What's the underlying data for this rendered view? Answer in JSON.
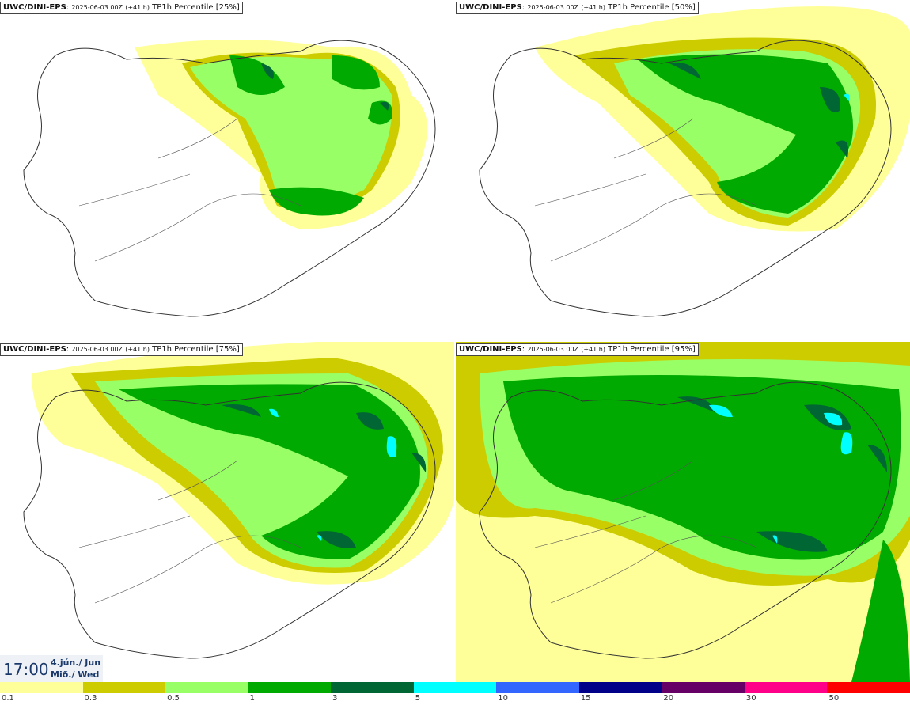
{
  "panels": [
    {
      "model": "UWC/DINI-EPS",
      "run": "2025-06-03 00Z",
      "lead": "(+41 h)",
      "title": "TP1h Percentile [25%]",
      "percentile": 25
    },
    {
      "model": "UWC/DINI-EPS",
      "run": "2025-06-03 00Z",
      "lead": "(+41 h)",
      "title": "TP1h Percentile [50%]",
      "percentile": 50
    },
    {
      "model": "UWC/DINI-EPS",
      "run": "2025-06-03 00Z",
      "lead": "(+41 h)",
      "title": "TP1h Percentile [75%]",
      "percentile": 75
    },
    {
      "model": "UWC/DINI-EPS",
      "run": "2025-06-03 00Z",
      "lead": "(+41 h)",
      "title": "TP1h Percentile [95%]",
      "percentile": 95
    }
  ],
  "valid_time": {
    "time": "17:00",
    "date": "4.jún./ Jun",
    "weekday": "Mið./ Wed"
  },
  "legend": {
    "labels": [
      "0.1",
      "0.3",
      "0.5",
      "1",
      "3",
      "5",
      "10",
      "15",
      "20",
      "30",
      "50"
    ],
    "colors": [
      "#ffff99",
      "#cccc00",
      "#99ff66",
      "#00aa00",
      "#006633",
      "#00ffff",
      "#3366ff",
      "#000088",
      "#660066",
      "#ff0088",
      "#ff0000"
    ]
  },
  "colors": {
    "light_yellow": "#ffff99",
    "olive": "#cccc00",
    "light_green": "#99ff66",
    "green": "#00aa00",
    "dark_green": "#006633",
    "cyan": "#00ffff"
  }
}
